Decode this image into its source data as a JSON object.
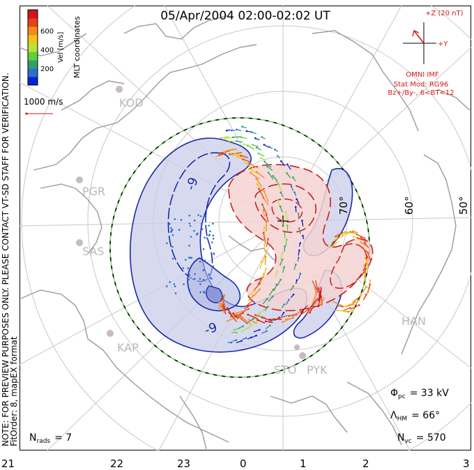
{
  "title": "05/Apr/2004 02:00-02:02 UT",
  "side_notes": {
    "coords": "MLT coordinates",
    "preview": "NOTE: FOR PREVIEW PURPOSES ONLY. PLEASE CONTACT VT-SD STAFF FOR VERIFICATION.",
    "fit": "FitOrder: 8, mapEX format"
  },
  "colorbar": {
    "label": "Vel [m/s]",
    "ticks": [
      "600",
      "400",
      "200"
    ],
    "colors": [
      "#0b1fd6",
      "#2a6fcf",
      "#2fa06a",
      "#5fd03a",
      "#b7e23a",
      "#f2c21a",
      "#f58a1a",
      "#e8421a",
      "#d1131a"
    ]
  },
  "scale_vector": {
    "label": "1000 m/s",
    "color": "#d11a1a"
  },
  "imf": {
    "z_label": "+Z (20 nT)",
    "y_label": "+Y",
    "source": "OMNI IMF",
    "stat_mod": "Stat Mod: RG96",
    "condition": "Bz+/By-, 6<BT<12",
    "color": "#d11a1a"
  },
  "lat_labels": {
    "l70": "70°",
    "l60": "60°",
    "l50": "50°"
  },
  "stations": [
    "KOD",
    "PGR",
    "SAS",
    "KAP",
    "STO",
    "PYK",
    "HAN"
  ],
  "contour_labels": {
    "neg_a": "-9",
    "neg_b": "-9"
  },
  "stats": {
    "phi_pc_value": "= 33 kV",
    "lambda_hm_value": "= 66°",
    "nvc_value": "= 570",
    "nrads_value": "= 7"
  },
  "mlt_ticks": [
    "21",
    "22",
    "23",
    "0",
    "1",
    "2",
    "3"
  ],
  "colors": {
    "negative_cell": "#c9cdea",
    "positive_cell": "#f3d4d2",
    "neg_contour": "#1a2aa8",
    "pos_contour": "#c81e1e",
    "land": "#9a9a9a",
    "grid": "#c8c8c8"
  }
}
